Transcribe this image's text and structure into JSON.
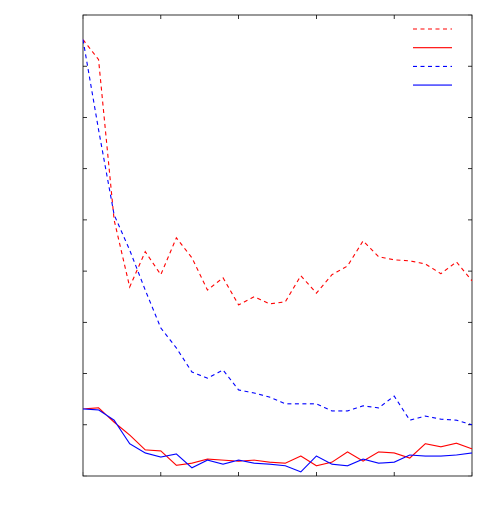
{
  "chart_data": {
    "type": "line",
    "x": [
      0,
      1,
      2,
      3,
      4,
      5,
      6,
      7,
      8,
      9,
      10,
      11,
      12,
      13,
      14,
      15,
      16,
      17,
      18,
      19,
      20,
      21,
      22,
      23,
      24,
      25
    ],
    "xlim": [
      0,
      25
    ],
    "xticks": [
      0,
      5,
      10,
      15,
      20,
      25
    ],
    "ylim": [
      0,
      9
    ],
    "yticks": [
      0,
      1,
      2,
      3,
      4,
      5,
      6,
      7,
      8,
      9
    ],
    "grid": false,
    "legend": "upper right",
    "series": [
      {
        "color": "#ff0000",
        "dashed": true,
        "values": [
          8.52,
          8.13,
          5.0,
          3.69,
          4.38,
          3.93,
          4.65,
          4.26,
          3.63,
          3.87,
          3.34,
          3.5,
          3.36,
          3.4,
          3.91,
          3.57,
          3.93,
          4.1,
          4.59,
          4.28,
          4.22,
          4.2,
          4.14,
          3.95,
          4.18,
          3.81
        ]
      },
      {
        "color": "#ff0000",
        "dashed": false,
        "values": [
          1.31,
          1.33,
          1.05,
          0.8,
          0.51,
          0.49,
          0.21,
          0.25,
          0.33,
          0.31,
          0.29,
          0.31,
          0.27,
          0.25,
          0.39,
          0.2,
          0.27,
          0.47,
          0.29,
          0.47,
          0.45,
          0.35,
          0.63,
          0.57,
          0.64,
          0.53
        ]
      },
      {
        "color": "#0000ff",
        "dashed": true,
        "values": [
          8.52,
          6.76,
          5.1,
          4.41,
          3.63,
          2.89,
          2.5,
          2.03,
          1.91,
          2.07,
          1.68,
          1.62,
          1.54,
          1.41,
          1.41,
          1.41,
          1.27,
          1.27,
          1.37,
          1.33,
          1.56,
          1.09,
          1.17,
          1.11,
          1.09,
          1.0
        ]
      },
      {
        "color": "#0000ff",
        "dashed": false,
        "values": [
          1.31,
          1.29,
          1.09,
          0.63,
          0.45,
          0.37,
          0.43,
          0.16,
          0.31,
          0.23,
          0.31,
          0.25,
          0.23,
          0.2,
          0.08,
          0.39,
          0.23,
          0.2,
          0.33,
          0.25,
          0.27,
          0.41,
          0.39,
          0.39,
          0.41,
          0.45
        ]
      }
    ]
  }
}
